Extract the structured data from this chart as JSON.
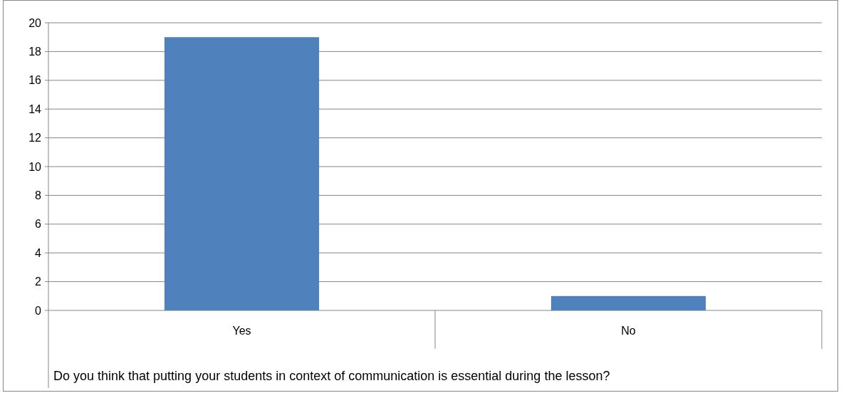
{
  "chart_data": {
    "type": "bar",
    "xlabel": "Do you think that putting your students in context of communication is essential during the lesson?",
    "categories": [
      "Yes",
      "No"
    ],
    "values": [
      19,
      1
    ],
    "color": "#4f81bd",
    "ylim": [
      0,
      20
    ],
    "yticks": [
      0,
      2,
      4,
      6,
      8,
      10,
      12,
      14,
      16,
      18,
      20
    ],
    "grid": "y"
  }
}
